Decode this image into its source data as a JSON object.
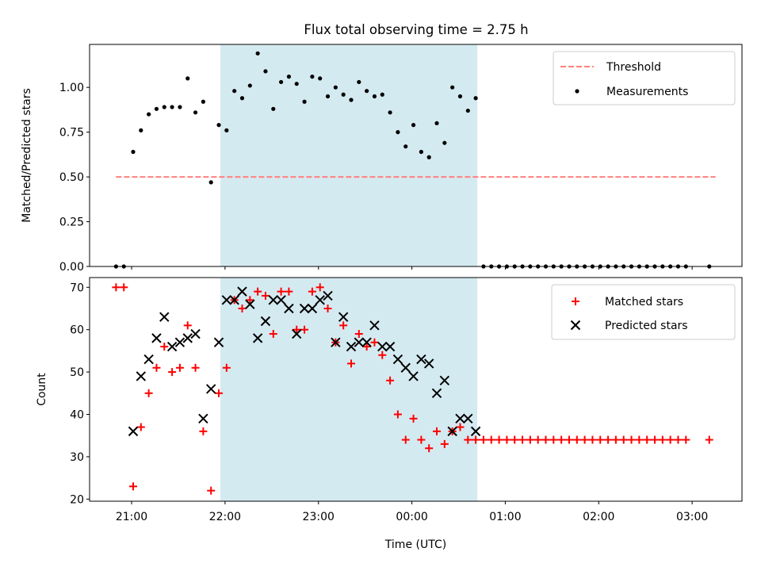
{
  "figure": {
    "title": "Flux total observing time = 2.75 h",
    "xlabel": "Time (UTC)"
  },
  "colors": {
    "shade": "#d4eaf1",
    "threshold": "#ff7f7f",
    "measurements": "#000000",
    "matched": "#ff0000",
    "predicted": "#000000"
  },
  "chart_data": [
    {
      "type": "scatter",
      "title": "Flux total observing time = 2.75 h",
      "xlabel": "",
      "ylabel": "Matched/Predicted stars",
      "x_ticks": [
        "21:00",
        "22:00",
        "23:00",
        "00:00",
        "01:00",
        "02:00",
        "03:00"
      ],
      "y_ticks": [
        "0.00",
        "0.25",
        "0.50",
        "0.75",
        "1.00"
      ],
      "xlim": [
        "20:33",
        "03:32"
      ],
      "ylim": [
        0,
        1.24
      ],
      "shaded_span": [
        "21:57",
        "00:42"
      ],
      "legend": {
        "position": "top-right",
        "entries": [
          "Threshold",
          "Measurements"
        ]
      },
      "threshold": {
        "name": "Threshold",
        "y": 0.5,
        "x_range": [
          "20:50",
          "03:15"
        ]
      },
      "series": [
        {
          "name": "Measurements",
          "marker": "dot",
          "x": [
            "20:50",
            "20:55",
            "21:01",
            "21:06",
            "21:11",
            "21:16",
            "21:21",
            "21:26",
            "21:31",
            "21:36",
            "21:41",
            "21:46",
            "21:51",
            "21:56",
            "22:01",
            "22:06",
            "22:11",
            "22:16",
            "22:21",
            "22:26",
            "22:31",
            "22:36",
            "22:41",
            "22:46",
            "22:51",
            "22:56",
            "23:01",
            "23:06",
            "23:11",
            "23:16",
            "23:21",
            "23:26",
            "23:31",
            "23:36",
            "23:41",
            "23:46",
            "23:51",
            "23:56",
            "00:01",
            "00:06",
            "00:11",
            "00:16",
            "00:21",
            "00:26",
            "00:31",
            "00:36",
            "00:41",
            "00:46",
            "00:51",
            "00:56",
            "01:01",
            "01:06",
            "01:11",
            "01:16",
            "01:21",
            "01:26",
            "01:31",
            "01:36",
            "01:41",
            "01:46",
            "01:51",
            "01:56",
            "02:01",
            "02:06",
            "02:11",
            "02:16",
            "02:21",
            "02:26",
            "02:31",
            "02:36",
            "02:41",
            "02:46",
            "02:51",
            "02:56",
            "03:11"
          ],
          "y": [
            0.0,
            0.0,
            0.64,
            0.76,
            0.85,
            0.88,
            0.89,
            0.89,
            0.89,
            1.05,
            0.86,
            0.92,
            0.47,
            0.79,
            0.76,
            0.98,
            0.94,
            1.01,
            1.19,
            1.09,
            0.88,
            1.03,
            1.06,
            1.02,
            0.92,
            1.06,
            1.05,
            0.95,
            1.0,
            0.96,
            0.93,
            1.03,
            0.98,
            0.95,
            0.96,
            0.86,
            0.75,
            0.67,
            0.79,
            0.64,
            0.61,
            0.8,
            0.69,
            1.0,
            0.95,
            0.87,
            0.94,
            0.0,
            0.0,
            0.0,
            0.0,
            0.0,
            0.0,
            0.0,
            0.0,
            0.0,
            0.0,
            0.0,
            0.0,
            0.0,
            0.0,
            0.0,
            0.0,
            0.0,
            0.0,
            0.0,
            0.0,
            0.0,
            0.0,
            0.0,
            0.0,
            0.0,
            0.0,
            0.0,
            0.0
          ]
        }
      ]
    },
    {
      "type": "scatter",
      "xlabel": "Time (UTC)",
      "ylabel": "Count",
      "x_ticks": [
        "21:00",
        "22:00",
        "23:00",
        "00:00",
        "01:00",
        "02:00",
        "03:00"
      ],
      "y_ticks": [
        "20",
        "30",
        "40",
        "50",
        "60",
        "70"
      ],
      "xlim": [
        "20:33",
        "03:32"
      ],
      "ylim": [
        19.5,
        72.3
      ],
      "shaded_span": [
        "21:57",
        "00:42"
      ],
      "legend": {
        "position": "top-right",
        "entries": [
          "Matched stars",
          "Predicted stars"
        ]
      },
      "series": [
        {
          "name": "Matched stars",
          "marker": "plus",
          "x": [
            "20:50",
            "20:55",
            "21:01",
            "21:06",
            "21:11",
            "21:16",
            "21:21",
            "21:26",
            "21:31",
            "21:36",
            "21:41",
            "21:46",
            "21:51",
            "21:56",
            "22:01",
            "22:06",
            "22:11",
            "22:16",
            "22:21",
            "22:26",
            "22:31",
            "22:36",
            "22:41",
            "22:46",
            "22:51",
            "22:56",
            "23:01",
            "23:06",
            "23:11",
            "23:16",
            "23:21",
            "23:26",
            "23:31",
            "23:36",
            "23:41",
            "23:46",
            "23:51",
            "23:56",
            "00:01",
            "00:06",
            "00:11",
            "00:16",
            "00:21",
            "00:26",
            "00:31",
            "00:36",
            "00:41",
            "00:46",
            "00:51",
            "00:56",
            "01:01",
            "01:06",
            "01:11",
            "01:16",
            "01:21",
            "01:26",
            "01:31",
            "01:36",
            "01:41",
            "01:46",
            "01:51",
            "01:56",
            "02:01",
            "02:06",
            "02:11",
            "02:16",
            "02:21",
            "02:26",
            "02:31",
            "02:36",
            "02:41",
            "02:46",
            "02:51",
            "02:56",
            "03:11"
          ],
          "y": [
            70,
            70,
            23,
            37,
            45,
            51,
            56,
            50,
            51,
            61,
            51,
            36,
            22,
            45,
            51,
            67,
            65,
            67,
            69,
            68,
            59,
            69,
            69,
            60,
            60,
            69,
            70,
            65,
            57,
            61,
            52,
            59,
            56,
            57,
            54,
            48,
            40,
            34,
            39,
            34,
            32,
            36,
            33,
            36,
            37,
            34,
            34,
            34,
            34,
            34,
            34,
            34,
            34,
            34,
            34,
            34,
            34,
            34,
            34,
            34,
            34,
            34,
            34,
            34,
            34,
            34,
            34,
            34,
            34,
            34,
            34,
            34,
            34,
            34,
            34
          ]
        },
        {
          "name": "Predicted stars",
          "marker": "x",
          "x": [
            "21:01",
            "21:06",
            "21:11",
            "21:16",
            "21:21",
            "21:26",
            "21:31",
            "21:36",
            "21:41",
            "21:46",
            "21:51",
            "21:56",
            "22:01",
            "22:06",
            "22:11",
            "22:16",
            "22:21",
            "22:26",
            "22:31",
            "22:36",
            "22:41",
            "22:46",
            "22:51",
            "22:56",
            "23:01",
            "23:06",
            "23:11",
            "23:16",
            "23:21",
            "23:26",
            "23:31",
            "23:36",
            "23:41",
            "23:46",
            "23:51",
            "23:56",
            "00:01",
            "00:06",
            "00:11",
            "00:16",
            "00:21",
            "00:26",
            "00:31",
            "00:36",
            "00:41"
          ],
          "y": [
            36,
            49,
            53,
            58,
            63,
            56,
            57,
            58,
            59,
            39,
            46,
            57,
            67,
            67,
            69,
            66,
            58,
            62,
            67,
            67,
            65,
            59,
            65,
            65,
            67,
            68,
            57,
            63,
            56,
            57,
            57,
            61,
            56,
            56,
            53,
            51,
            49,
            53,
            52,
            45,
            48,
            36,
            39,
            39,
            36
          ]
        }
      ]
    }
  ]
}
